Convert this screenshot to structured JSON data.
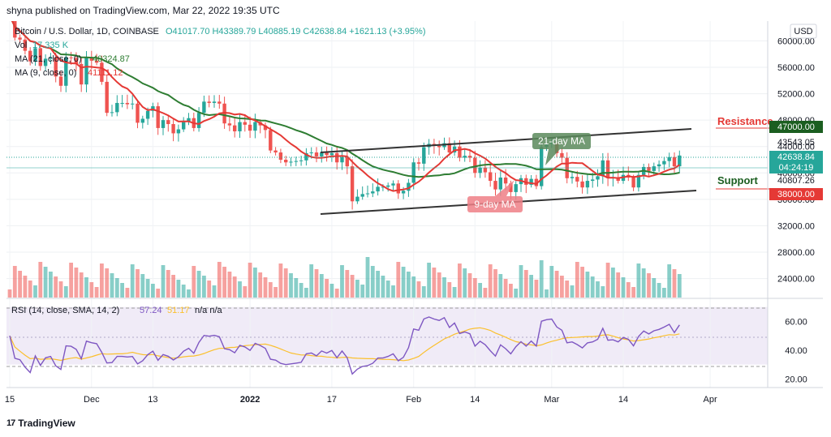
{
  "header": {
    "published": "shyna published on TradingView.com, Mar 22, 2022 19:35 UTC",
    "legend_symbol": "Bitcoin / U.S. Dollar, 1D, COINBASE",
    "legend_ohlc": "O41017.70  H43389.79  L40885.19  C42638.84  +1621.13 (+3.95%)",
    "legend_vol": "Vol",
    "legend_vol_value": "17.335 K",
    "legend_ma21": "MA (21, close, 0)",
    "legend_ma21_value": "40324.87",
    "legend_ma9": "MA (9, close, 0)",
    "legend_ma9_value": "41111.12",
    "currency": "USD"
  },
  "price_axis": {
    "ticks": [
      "60000.00",
      "56000.00",
      "52000.00",
      "48000.00",
      "44000.00",
      "40000.00",
      "36000.00",
      "32000.00",
      "28000.00",
      "24000.00"
    ],
    "tick_values": [
      60000,
      56000,
      52000,
      48000,
      44000,
      40000,
      36000,
      32000,
      28000,
      24000
    ],
    "ylim": [
      21000,
      63000
    ]
  },
  "labels": {
    "resistance_text": "Resistance",
    "support_text": "Support",
    "resistance_tag": "47000.00",
    "support_tag": "38000.00",
    "price_43543": "43543.05",
    "price_last": "42638.84",
    "countdown": "04:24:19",
    "price_40807": "40807.26",
    "ma21_callout": "21-day MA",
    "ma9_callout": "9-day MA"
  },
  "rsi": {
    "legend": "RSI (14, close, SMA, 14, 2)",
    "value1": "57.24",
    "value2": "51.17",
    "na": "n/a  n/a",
    "ticks": [
      "60.00",
      "40.00",
      "20.00"
    ],
    "tick_values": [
      60,
      40,
      20
    ],
    "ylim": [
      14,
      76
    ],
    "band": [
      30,
      70
    ]
  },
  "time_axis": {
    "labels": [
      "15",
      "Dec",
      "13",
      "2022",
      "17",
      "Feb",
      "14",
      "Mar",
      "14",
      "Apr"
    ],
    "label_days": [
      0,
      16,
      28,
      47,
      63,
      79,
      91,
      106,
      120,
      137
    ]
  },
  "footer": {
    "brand": "TradingView",
    "logo": "17"
  },
  "colors": {
    "up": "#26a69a",
    "down": "#ef5350",
    "ma21": "#2e7d32",
    "ma9": "#e53935",
    "rsi": "#7e57c2",
    "rsi_sma": "#fbc02d"
  },
  "chart_data": {
    "type": "candlestick",
    "x_start": "2021-11-15",
    "closes": [
      63800,
      60500,
      60200,
      58500,
      56900,
      58900,
      56200,
      57300,
      57500,
      54600,
      53200,
      57500,
      57400,
      56500,
      53400,
      57500,
      57000,
      56700,
      53800,
      49100,
      49200,
      50600,
      50600,
      50400,
      50500,
      47600,
      48200,
      49400,
      50100,
      46800,
      48000,
      47400,
      46000,
      46600,
      47700,
      48300,
      46800,
      49100,
      50800,
      50600,
      50800,
      50500,
      47500,
      47200,
      46300,
      47700,
      47300,
      46400,
      47700,
      47200,
      46500,
      43400,
      43100,
      42000,
      41600,
      41700,
      41800,
      41900,
      43000,
      43100,
      42500,
      43100,
      42700,
      43000,
      41600,
      42400,
      41000,
      35700,
      36400,
      36800,
      36900,
      37200,
      37900,
      37900,
      38100,
      38400,
      36900,
      37300,
      38500,
      41600,
      41400,
      43900,
      44400,
      44100,
      43900,
      44500,
      43100,
      44000,
      42300,
      42600,
      42300,
      40000,
      40800,
      40100,
      38800,
      37500,
      39300,
      38400,
      37100,
      38300,
      39200,
      38200,
      39100,
      38000,
      43900,
      44400,
      44600,
      43000,
      42300,
      39200,
      39400,
      38700,
      37800,
      38800,
      39000,
      39500,
      41900,
      39200,
      39300,
      38800,
      39700,
      39300,
      37800,
      39700,
      40900,
      40300,
      41000,
      41300,
      41800,
      42400,
      41000,
      42638
    ],
    "ma21_note": "moving averages computed from closes"
  }
}
